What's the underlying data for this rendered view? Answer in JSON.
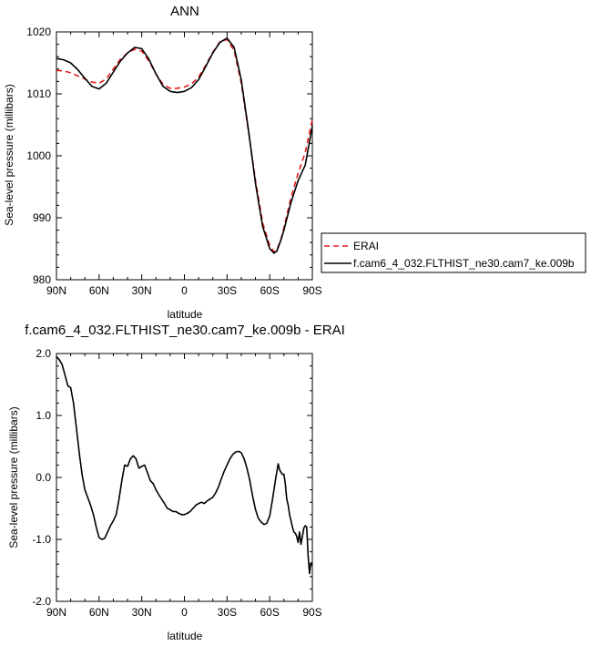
{
  "chart_data": [
    {
      "type": "line",
      "title": "ANN",
      "xlabel": "latitude",
      "ylabel": "Sea-level pressure (millibars)",
      "xticks": [
        "90N",
        "60N",
        "30N",
        "0",
        "30S",
        "60S",
        "90S"
      ],
      "xtick_values": [
        90,
        60,
        30,
        0,
        -30,
        -60,
        -90
      ],
      "yticks": [
        "980",
        "990",
        "1000",
        "1010",
        "1020"
      ],
      "ytick_values": [
        980,
        990,
        1000,
        1010,
        1020
      ],
      "xlim": [
        90,
        -90
      ],
      "ylim": [
        980,
        1020
      ],
      "legend_placement": "right",
      "series": [
        {
          "name": "ERAI",
          "color": "#e31a1c",
          "dash": true,
          "x": [
            90,
            85,
            80,
            75,
            70,
            65,
            60,
            55,
            50,
            45,
            40,
            35,
            30,
            25,
            20,
            15,
            10,
            5,
            0,
            -5,
            -10,
            -15,
            -20,
            -25,
            -30,
            -35,
            -40,
            -45,
            -50,
            -55,
            -60,
            -63,
            -65,
            -68,
            -70,
            -75,
            -80,
            -85,
            -90
          ],
          "y": [
            1013.8,
            1013.7,
            1013.4,
            1012.9,
            1012.4,
            1011.9,
            1011.7,
            1012.4,
            1014.0,
            1015.6,
            1016.6,
            1017.2,
            1016.9,
            1015.3,
            1013.2,
            1011.5,
            1010.9,
            1010.9,
            1011.1,
            1011.6,
            1012.7,
            1014.6,
            1016.7,
            1018.4,
            1018.8,
            1017.0,
            1011.8,
            1004.0,
            996.0,
            989.2,
            985.5,
            984.5,
            984.8,
            986.6,
            988.4,
            993.3,
            997.2,
            1000.5,
            1005.9
          ]
        },
        {
          "name": "f.cam6_4_032.FLTHIST_ne30.cam7_ke.009b",
          "color": "#000000",
          "dash": false,
          "x": [
            90,
            85,
            80,
            75,
            70,
            65,
            60,
            55,
            50,
            45,
            40,
            35,
            30,
            25,
            20,
            15,
            10,
            5,
            0,
            -5,
            -10,
            -15,
            -20,
            -25,
            -30,
            -35,
            -40,
            -45,
            -50,
            -55,
            -60,
            -63,
            -65,
            -68,
            -70,
            -75,
            -80,
            -85,
            -90
          ],
          "y": [
            1015.7,
            1015.5,
            1015.0,
            1013.9,
            1012.5,
            1011.2,
            1010.8,
            1011.7,
            1013.5,
            1015.3,
            1016.6,
            1017.5,
            1017.3,
            1015.6,
            1013.2,
            1011.2,
            1010.4,
            1010.2,
            1010.4,
            1011.0,
            1012.3,
            1014.4,
            1016.6,
            1018.3,
            1019.0,
            1017.5,
            1012.3,
            1004.2,
            995.5,
            988.6,
            985.0,
            984.3,
            984.6,
            986.5,
            988.0,
            992.5,
            996.0,
            998.5,
            1004.8
          ]
        }
      ]
    },
    {
      "type": "line",
      "title": "f.cam6_4_032.FLTHIST_ne30.cam7_ke.009b - ERAI",
      "xlabel": "latitude",
      "ylabel": "Sea-level pressure (millibars)",
      "xticks": [
        "90N",
        "60N",
        "30N",
        "0",
        "30S",
        "60S",
        "90S"
      ],
      "xtick_values": [
        90,
        60,
        30,
        0,
        -30,
        -60,
        -90
      ],
      "yticks": [
        "-2.0",
        "-1.0",
        "0.0",
        "1.0",
        "2.0"
      ],
      "ytick_values": [
        -2,
        -1,
        0,
        1,
        2
      ],
      "xlim": [
        90,
        -90
      ],
      "ylim": [
        -2,
        2
      ],
      "series": [
        {
          "color": "#000000",
          "dash": false,
          "x": [
            90,
            88,
            86,
            84,
            82,
            80,
            78,
            76,
            74,
            72,
            70,
            68,
            66,
            64,
            62,
            60,
            58,
            56,
            54,
            52,
            50,
            48,
            46,
            44,
            42,
            40,
            38,
            36,
            34,
            32,
            30,
            28,
            26,
            24,
            22,
            20,
            18,
            16,
            14,
            12,
            10,
            8,
            6,
            4,
            2,
            0,
            -2,
            -4,
            -6,
            -8,
            -10,
            -12,
            -14,
            -16,
            -18,
            -20,
            -22,
            -24,
            -26,
            -28,
            -30,
            -32,
            -34,
            -36,
            -38,
            -40,
            -42,
            -44,
            -46,
            -48,
            -50,
            -52,
            -54,
            -56,
            -58,
            -60,
            -62,
            -64,
            -66,
            -67,
            -68,
            -69,
            -70,
            -71,
            -72,
            -73,
            -74,
            -75,
            -76,
            -77,
            -78,
            -79,
            -80,
            -81,
            -82,
            -83,
            -84,
            -85,
            -86,
            -87,
            -88,
            -89,
            -90
          ],
          "y": [
            1.95,
            1.9,
            1.82,
            1.65,
            1.48,
            1.45,
            1.2,
            0.8,
            0.4,
            0.05,
            -0.2,
            -0.32,
            -0.45,
            -0.6,
            -0.8,
            -0.97,
            -1.0,
            -0.98,
            -0.88,
            -0.78,
            -0.7,
            -0.6,
            -0.35,
            -0.05,
            0.2,
            0.18,
            0.3,
            0.35,
            0.3,
            0.15,
            0.18,
            0.2,
            0.08,
            -0.05,
            -0.1,
            -0.2,
            -0.28,
            -0.35,
            -0.42,
            -0.5,
            -0.52,
            -0.55,
            -0.55,
            -0.58,
            -0.6,
            -0.6,
            -0.58,
            -0.55,
            -0.5,
            -0.45,
            -0.42,
            -0.4,
            -0.42,
            -0.38,
            -0.35,
            -0.32,
            -0.25,
            -0.15,
            -0.02,
            0.1,
            0.2,
            0.3,
            0.37,
            0.41,
            0.42,
            0.4,
            0.3,
            0.15,
            -0.05,
            -0.3,
            -0.52,
            -0.66,
            -0.72,
            -0.76,
            -0.74,
            -0.62,
            -0.35,
            -0.05,
            0.22,
            0.12,
            0.08,
            0.05,
            0.05,
            -0.1,
            -0.35,
            -0.45,
            -0.6,
            -0.7,
            -0.8,
            -0.88,
            -0.9,
            -0.95,
            -1.05,
            -0.88,
            -1.08,
            -0.95,
            -0.82,
            -0.78,
            -0.8,
            -1.25,
            -1.55,
            -1.38,
            -1.42
          ]
        }
      ]
    }
  ]
}
